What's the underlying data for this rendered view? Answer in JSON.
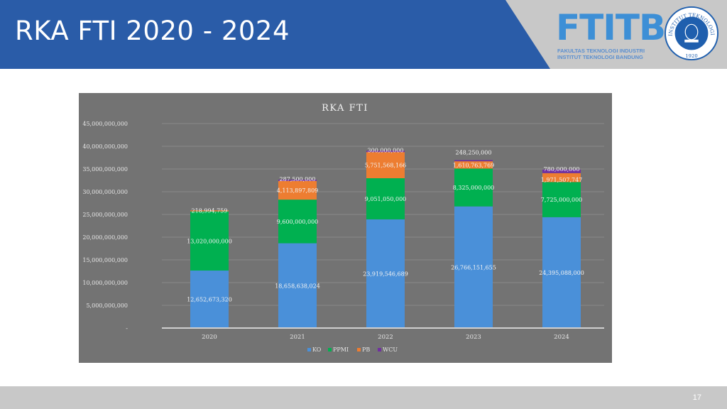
{
  "slide": {
    "title": "RKA FTI 2020 - 2024",
    "page_number": "17",
    "logo": {
      "wordmark": "FTITB",
      "line1": "FAKULTAS TEKNOLOGI INDUSTRI",
      "line2": "INSTITUT TEKNOLOGI BANDUNG"
    },
    "seal": {
      "ring_text": "INSTITUT TEKNOLOGI BANDUNG",
      "year": "1920"
    },
    "colors": {
      "header_blue": "#2a5ca8",
      "header_gray": "#c8c8c8",
      "chart_bg": "#737373"
    }
  },
  "chart_data": {
    "type": "bar",
    "stacked": true,
    "title": "RKA FTI",
    "xlabel": "",
    "ylabel": "",
    "categories": [
      "2020",
      "2021",
      "2022",
      "2023",
      "2024"
    ],
    "ylim": [
      0,
      45000000000
    ],
    "yticks": [
      0,
      5000000000,
      10000000000,
      15000000000,
      20000000000,
      25000000000,
      30000000000,
      35000000000,
      40000000000,
      45000000000
    ],
    "ytick_labels": [
      "-",
      "5,000,000,000",
      "10,000,000,000",
      "15,000,000,000",
      "20,000,000,000",
      "25,000,000,000",
      "30,000,000,000",
      "35,000,000,000",
      "40,000,000,000",
      "45,000,000,000"
    ],
    "grid": true,
    "legend": "bottom",
    "series": [
      {
        "name": "KO",
        "color": "#4a90d9",
        "values": [
          12652673320,
          18658638024,
          23919546689,
          26766151655,
          24395088000
        ],
        "labels": [
          "12,652,673,320",
          "18,658,638,024",
          "23,919,546,689",
          "26,766,151,655",
          "24,395,088,000"
        ]
      },
      {
        "name": "PPMI",
        "color": "#00b050",
        "values": [
          13020000000,
          9600000000,
          9051050000,
          8325000000,
          7725000000
        ],
        "labels": [
          "13,020,000,000",
          "9,600,000,000",
          "9,051,050,000",
          "8,325,000,000",
          "7,725,000,000"
        ]
      },
      {
        "name": "PB",
        "color": "#ed7d31",
        "values": [
          218994759,
          4113897809,
          5751568166,
          1610763769,
          1971507747
        ],
        "labels": [
          "218,994,759",
          "4,113,897,809",
          "5,751,568,166",
          "1,610,763,769",
          "1,971,507,747"
        ]
      },
      {
        "name": "WCU",
        "color": "#7030a0",
        "values": [
          0,
          287500000,
          300000000,
          248250000,
          780000000
        ],
        "labels": [
          "",
          "287,500,000",
          "300,000,000",
          "248,250,000",
          "780,000,000"
        ]
      }
    ]
  }
}
